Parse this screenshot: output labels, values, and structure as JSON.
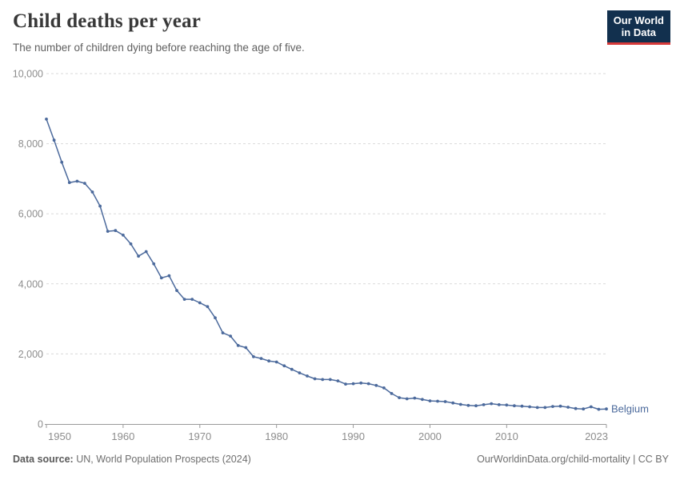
{
  "header": {
    "title": "Child deaths per year",
    "subtitle": "The number of children dying before reaching the age of five.",
    "logo_line1": "Our World",
    "logo_line2": "in Data"
  },
  "colors": {
    "line": "#4c6a9c",
    "grid": "#d9d9d9",
    "axis": "#9a9a9a",
    "tick_text": "#8c8c8c",
    "logo_bg": "#12304e",
    "logo_bar": "#d73a3a"
  },
  "chart_data": {
    "type": "line",
    "title": "Child deaths per year",
    "subtitle": "The number of children dying before reaching the age of five.",
    "xlabel": "",
    "ylabel": "",
    "ylim": [
      0,
      10000
    ],
    "xlim": [
      1950,
      2023
    ],
    "grid": "horizontal-dashed",
    "legend_position": "end-of-line-label",
    "end_label": "Belgium",
    "yticks": [
      0,
      2000,
      4000,
      6000,
      8000,
      10000
    ],
    "ytick_labels": [
      "0",
      "2,000",
      "4,000",
      "6,000",
      "8,000",
      "10,000"
    ],
    "xticks": [
      1950,
      1960,
      1970,
      1980,
      1990,
      2000,
      2010,
      2023
    ],
    "xtick_labels": [
      "1950",
      "1960",
      "1970",
      "1980",
      "1990",
      "2000",
      "2010",
      "2023"
    ],
    "x": [
      1950,
      1951,
      1952,
      1953,
      1954,
      1955,
      1956,
      1957,
      1958,
      1959,
      1960,
      1961,
      1962,
      1963,
      1964,
      1965,
      1966,
      1967,
      1968,
      1969,
      1970,
      1971,
      1972,
      1973,
      1974,
      1975,
      1976,
      1977,
      1978,
      1979,
      1980,
      1981,
      1982,
      1983,
      1984,
      1985,
      1986,
      1987,
      1988,
      1989,
      1990,
      1991,
      1992,
      1993,
      1994,
      1995,
      1996,
      1997,
      1998,
      1999,
      2000,
      2001,
      2002,
      2003,
      2004,
      2005,
      2006,
      2007,
      2008,
      2009,
      2010,
      2011,
      2012,
      2013,
      2014,
      2015,
      2016,
      2017,
      2018,
      2019,
      2020,
      2021,
      2022,
      2023
    ],
    "series": [
      {
        "name": "Belgium",
        "color": "#4c6a9c",
        "values": [
          8700,
          8100,
          7470,
          6890,
          6930,
          6870,
          6620,
          6220,
          5500,
          5520,
          5390,
          5140,
          4790,
          4920,
          4570,
          4170,
          4230,
          3810,
          3560,
          3560,
          3460,
          3350,
          3030,
          2600,
          2510,
          2240,
          2180,
          1920,
          1870,
          1800,
          1770,
          1660,
          1560,
          1460,
          1370,
          1290,
          1270,
          1270,
          1230,
          1140,
          1150,
          1170,
          1150,
          1100,
          1030,
          870,
          750,
          720,
          740,
          700,
          660,
          650,
          640,
          600,
          560,
          530,
          520,
          550,
          580,
          550,
          540,
          520,
          510,
          490,
          470,
          470,
          500,
          510,
          480,
          440,
          430,
          490,
          420,
          430
        ]
      }
    ]
  },
  "footer": {
    "source_label": "Data source:",
    "source_text": " UN, World Population Prospects (2024)",
    "credit": "OurWorldinData.org/child-mortality | CC BY"
  }
}
